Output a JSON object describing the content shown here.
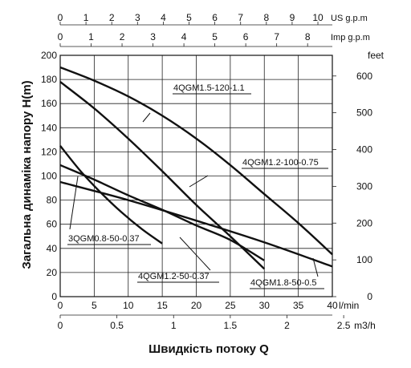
{
  "chart_data": {
    "type": "line",
    "xlabel": "Швидкість потоку Q",
    "ylabel": "Загальна динаміка напору H(m)",
    "x_unit": "l/min",
    "xlim": [
      0,
      40
    ],
    "ylim": [
      0,
      200
    ],
    "x_ticks": [
      "0",
      "5",
      "10",
      "15",
      "20",
      "25",
      "30",
      "35",
      "40"
    ],
    "y_ticks": [
      "0",
      "20",
      "40",
      "60",
      "80",
      "100",
      "120",
      "140",
      "160",
      "180",
      "200"
    ],
    "top_axes": [
      {
        "unit": "US g.p.m",
        "max": 10.56,
        "ticks": [
          "0",
          "1",
          "2",
          "3",
          "4",
          "5",
          "6",
          "7",
          "8",
          "9",
          "10"
        ]
      },
      {
        "unit": "Imp g.p.m",
        "max": 8.8,
        "ticks": [
          "0",
          "1",
          "2",
          "3",
          "4",
          "5",
          "6",
          "7",
          "8"
        ]
      }
    ],
    "bottom_axis2": {
      "unit": "m3/h",
      "max": 2.4,
      "ticks": [
        "0",
        "0.5",
        "1",
        "1.5",
        "2",
        "2.5"
      ]
    },
    "right_axis": {
      "unit": "feet",
      "max": 656.2,
      "ticks": [
        "0",
        "100",
        "200",
        "300",
        "400",
        "500",
        "600"
      ]
    },
    "series": [
      {
        "name": "4QGM1.5-120-1.1",
        "x": [
          0,
          5,
          10,
          15,
          20,
          25,
          30,
          35,
          40
        ],
        "y": [
          190,
          179,
          166,
          150,
          131,
          109,
          85,
          61,
          35
        ]
      },
      {
        "name": "4QGM1.2-100-0.75",
        "x": [
          0,
          5,
          10,
          15,
          20,
          25,
          30
        ],
        "y": [
          178,
          156,
          131,
          104,
          76,
          50,
          23
        ]
      },
      {
        "name": "3QGM0.8-50-0.37",
        "x": [
          0,
          3,
          6,
          9,
          12,
          15
        ],
        "y": [
          125,
          104,
          86,
          70,
          56,
          44
        ]
      },
      {
        "name": "4QGM1.2-50-0.37",
        "x": [
          0,
          5,
          10,
          15,
          20,
          25,
          30
        ],
        "y": [
          109,
          97,
          84,
          72,
          59,
          47,
          30
        ]
      },
      {
        "name": "4QGM1.8-50-0.5",
        "x": [
          0,
          10,
          20,
          30,
          40
        ],
        "y": [
          95,
          80,
          63,
          45,
          25
        ]
      }
    ],
    "labels": [
      {
        "text": "4QGM1.5-120-1.1",
        "series": 0
      },
      {
        "text": "4QGM1.2-100-0.75",
        "series": 1
      },
      {
        "text": "3QGM0.8-50-0.37",
        "series": 2
      },
      {
        "text": "4QGM1.2-50-0.37",
        "series": 3
      },
      {
        "text": "4QGM1.8-50-0.5",
        "series": 4
      }
    ]
  }
}
